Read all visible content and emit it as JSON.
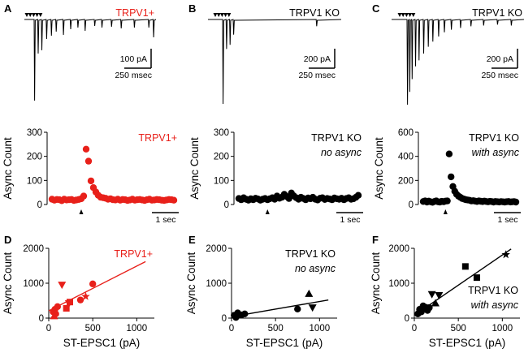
{
  "figure": {
    "panel_letters": [
      "A",
      "B",
      "C",
      "D",
      "E",
      "F"
    ]
  },
  "chart_data": [
    {
      "id": "A-trace",
      "type": "line",
      "title": "TRPV1+",
      "title_color": "#e8201a",
      "description": "EPSC trace, 5 stimuli (arrowheads)",
      "scalebar": {
        "y_label": "100 pA",
        "x_label": "250 msec"
      },
      "stim_count": 5,
      "events": [
        [
          0.0,
          1.0
        ],
        [
          0.03,
          0.42
        ],
        [
          0.06,
          0.38
        ],
        [
          0.1,
          0.24
        ],
        [
          0.14,
          0.2
        ],
        [
          0.18,
          0.15
        ],
        [
          0.24,
          0.19
        ],
        [
          0.3,
          0.12
        ],
        [
          0.36,
          0.1
        ],
        [
          0.42,
          0.14
        ],
        [
          0.5,
          0.08
        ],
        [
          0.56,
          0.1
        ],
        [
          0.64,
          0.09
        ],
        [
          0.72,
          0.11
        ],
        [
          0.83,
          0.1
        ],
        [
          0.95,
          0.1
        ],
        [
          0.99,
          0.22
        ]
      ],
      "color": "#000000"
    },
    {
      "id": "B-trace",
      "type": "line",
      "title": "TRPV1 KO",
      "title_color": "#000000",
      "description": "EPSC trace, 5 stimuli (arrowheads)",
      "scalebar": {
        "y_label": "200 pA",
        "x_label": "250 msec"
      },
      "stim_count": 5,
      "events": [
        [
          0.0,
          1.0
        ],
        [
          0.03,
          0.35
        ],
        [
          0.06,
          0.3
        ],
        [
          0.09,
          0.18
        ],
        [
          0.8,
          0.08
        ]
      ],
      "color": "#000000"
    },
    {
      "id": "C-trace",
      "type": "line",
      "title": "TRPV1 KO",
      "title_color": "#000000",
      "description": "EPSC trace, 5 stimuli (arrowheads)",
      "scalebar": {
        "y_label": "200 pA",
        "x_label": "250 msec"
      },
      "stim_count": 5,
      "events": [
        [
          0.0,
          1.0
        ],
        [
          0.02,
          0.85
        ],
        [
          0.04,
          0.7
        ],
        [
          0.07,
          0.55
        ],
        [
          0.1,
          0.48
        ],
        [
          0.14,
          0.4
        ],
        [
          0.18,
          0.32
        ],
        [
          0.22,
          0.26
        ],
        [
          0.27,
          0.2
        ],
        [
          0.32,
          0.15
        ],
        [
          0.38,
          0.12
        ],
        [
          0.46,
          0.1
        ],
        [
          0.55,
          0.08
        ],
        [
          0.66,
          0.07
        ],
        [
          0.78,
          0.06
        ],
        [
          0.9,
          0.07
        ]
      ],
      "color": "#000000"
    },
    {
      "id": "A-time",
      "type": "scatter",
      "title": "TRPV1+",
      "title_color": "#e8201a",
      "subtitle": "",
      "ylabel": "Async Count",
      "ylim": [
        0,
        300
      ],
      "yticks": [
        0,
        100,
        200,
        300
      ],
      "scalebar": {
        "x_label": "1 sec"
      },
      "color": "#e8201a",
      "stimulus_index": 12,
      "values": [
        22,
        18,
        21,
        20,
        16,
        22,
        19,
        20,
        21,
        17,
        19,
        21,
        24,
        35,
        230,
        180,
        98,
        70,
        52,
        38,
        30,
        28,
        26,
        22,
        24,
        20,
        19,
        22,
        18,
        21,
        20,
        17,
        19,
        22,
        18,
        20,
        21,
        19,
        17,
        20,
        22,
        18,
        19,
        21,
        20,
        18,
        17,
        19,
        21,
        20,
        18
      ]
    },
    {
      "id": "B-time",
      "type": "scatter",
      "title": "TRPV1 KO",
      "title_color": "#000000",
      "subtitle": "no async",
      "ylabel": "Async Count",
      "ylim": [
        0,
        300
      ],
      "yticks": [
        0,
        100,
        200,
        300
      ],
      "scalebar": {
        "x_label": "1 sec"
      },
      "color": "#000000",
      "stimulus_index": 12,
      "values": [
        25,
        20,
        28,
        22,
        18,
        24,
        20,
        26,
        23,
        18,
        22,
        25,
        20,
        24,
        28,
        22,
        35,
        26,
        30,
        42,
        33,
        25,
        48,
        36,
        28,
        22,
        30,
        25,
        20,
        27,
        24,
        30,
        22,
        19,
        26,
        28,
        21,
        25,
        23,
        20,
        27,
        24,
        22,
        26,
        20,
        25,
        28,
        22,
        24,
        30,
        38
      ]
    },
    {
      "id": "C-time",
      "type": "scatter",
      "title": "TRPV1 KO",
      "title_color": "#000000",
      "subtitle": "with async",
      "ylabel": "Async Count",
      "ylim": [
        0,
        600
      ],
      "yticks": [
        0,
        200,
        400,
        600
      ],
      "scalebar": {
        "x_label": "1 sec"
      },
      "color": "#000000",
      "stimulus_index": 12,
      "values": [
        25,
        30,
        20,
        28,
        22,
        18,
        25,
        30,
        22,
        20,
        26,
        23,
        28,
        30,
        420,
        230,
        150,
        110,
        85,
        70,
        60,
        50,
        45,
        40,
        38,
        35,
        30,
        32,
        28,
        25,
        30,
        27,
        24,
        28,
        25,
        22,
        26,
        24,
        20,
        25,
        23,
        21,
        24,
        22,
        20,
        23,
        25,
        21,
        22,
        24,
        20
      ]
    },
    {
      "id": "D-scatter",
      "type": "scatter",
      "title": "TRPV1+",
      "title_color": "#e8201a",
      "subtitle": "",
      "xlabel": "ST-EPSC1 (pA)",
      "ylabel": "Async Count",
      "xlim": [
        0,
        1200
      ],
      "ylim": [
        0,
        2000
      ],
      "xticks": [
        0,
        500,
        1000
      ],
      "yticks": [
        0,
        1000,
        2000
      ],
      "color": "#e8201a",
      "fit": [
        [
          0,
          210
        ],
        [
          1100,
          1620
        ]
      ],
      "points": [
        {
          "x": 50,
          "y": 180,
          "shape": "circle"
        },
        {
          "x": 70,
          "y": 250,
          "shape": "circle"
        },
        {
          "x": 80,
          "y": 120,
          "shape": "circle"
        },
        {
          "x": 100,
          "y": 330,
          "shape": "circle"
        },
        {
          "x": 60,
          "y": 60,
          "shape": "triangle-up"
        },
        {
          "x": 150,
          "y": 950,
          "shape": "triangle-down"
        },
        {
          "x": 200,
          "y": 280,
          "shape": "square"
        },
        {
          "x": 240,
          "y": 460,
          "shape": "square"
        },
        {
          "x": 230,
          "y": 420,
          "shape": "triangle-down"
        },
        {
          "x": 360,
          "y": 520,
          "shape": "circle"
        },
        {
          "x": 420,
          "y": 620,
          "shape": "star"
        },
        {
          "x": 500,
          "y": 980,
          "shape": "circle"
        }
      ]
    },
    {
      "id": "E-scatter",
      "type": "scatter",
      "title": "TRPV1 KO",
      "title_color": "#000000",
      "subtitle": "no async",
      "xlabel": "ST-EPSC1 (pA)",
      "ylabel": "Async Count",
      "xlim": [
        0,
        1200
      ],
      "ylim": [
        0,
        2000
      ],
      "xticks": [
        0,
        500,
        1000
      ],
      "yticks": [
        0,
        1000,
        2000
      ],
      "color": "#000000",
      "fit": [
        [
          0,
          40
        ],
        [
          1100,
          520
        ]
      ],
      "points": [
        {
          "x": 30,
          "y": 80,
          "shape": "circle"
        },
        {
          "x": 70,
          "y": 150,
          "shape": "circle"
        },
        {
          "x": 110,
          "y": 90,
          "shape": "circle"
        },
        {
          "x": 150,
          "y": 120,
          "shape": "circle"
        },
        {
          "x": 50,
          "y": 20,
          "shape": "circle"
        },
        {
          "x": 750,
          "y": 260,
          "shape": "circle"
        },
        {
          "x": 880,
          "y": 700,
          "shape": "triangle-up"
        },
        {
          "x": 920,
          "y": 300,
          "shape": "triangle-down"
        }
      ]
    },
    {
      "id": "F-scatter",
      "type": "scatter",
      "title": "TRPV1 KO",
      "title_color": "#000000",
      "subtitle": "with async",
      "xlabel": "ST-EPSC1 (pA)",
      "ylabel": "Async Count",
      "xlim": [
        0,
        1200
      ],
      "ylim": [
        0,
        2000
      ],
      "xticks": [
        0,
        500,
        1000
      ],
      "yticks": [
        0,
        1000,
        2000
      ],
      "color": "#000000",
      "fit": [
        [
          0,
          80
        ],
        [
          1100,
          1980
        ]
      ],
      "points": [
        {
          "x": 40,
          "y": 120,
          "shape": "circle"
        },
        {
          "x": 60,
          "y": 250,
          "shape": "circle"
        },
        {
          "x": 80,
          "y": 180,
          "shape": "circle"
        },
        {
          "x": 100,
          "y": 350,
          "shape": "circle"
        },
        {
          "x": 120,
          "y": 280,
          "shape": "circle"
        },
        {
          "x": 150,
          "y": 220,
          "shape": "circle"
        },
        {
          "x": 130,
          "y": 310,
          "shape": "circle"
        },
        {
          "x": 170,
          "y": 300,
          "shape": "circle"
        },
        {
          "x": 200,
          "y": 680,
          "shape": "triangle-down"
        },
        {
          "x": 240,
          "y": 430,
          "shape": "triangle-up"
        },
        {
          "x": 280,
          "y": 650,
          "shape": "triangle-down"
        },
        {
          "x": 580,
          "y": 1480,
          "shape": "square"
        },
        {
          "x": 710,
          "y": 1160,
          "shape": "square"
        },
        {
          "x": 1040,
          "y": 1820,
          "shape": "star"
        }
      ]
    }
  ]
}
